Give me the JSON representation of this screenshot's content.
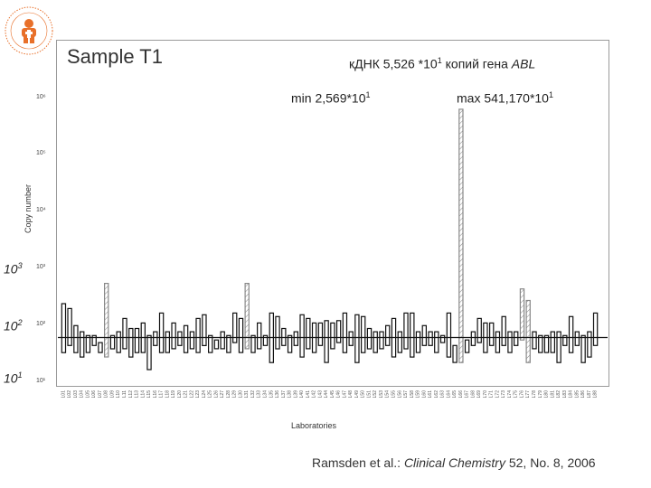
{
  "chart_data": {
    "type": "bar",
    "title": "Sample T1",
    "xlabel": "Laboratories",
    "ylabel": "Copy number",
    "y_scale": "log",
    "ylim": [
      10,
      1000000
    ],
    "y_ticks_small": [
      "10⁶",
      "10⁵",
      "10⁴",
      "10³",
      "10²",
      "10¹"
    ],
    "y_ticks_large": [
      {
        "base": "10",
        "exp": "3"
      },
      {
        "base": "10",
        "exp": "2"
      },
      {
        "base": "10",
        "exp": "1"
      }
    ],
    "reference_line": 55.26,
    "annotations": {
      "main_pre": "кДНК 5,526 *10",
      "main_exp": "1",
      "main_post": " копий гена ",
      "main_gene": "ABL",
      "min_pre": "min 2,569*10",
      "min_exp": "1",
      "max_pre": "max  541,170*10",
      "max_exp": "1"
    },
    "series": [
      {
        "values": [
          [
            30,
            220
          ],
          [
            40,
            180
          ],
          [
            30,
            90
          ],
          [
            25,
            70
          ],
          [
            30,
            60
          ],
          [
            40,
            60
          ],
          [
            30,
            45
          ],
          [
            25,
            500
          ],
          [
            35,
            60
          ],
          [
            30,
            70
          ],
          [
            35,
            120
          ],
          [
            25,
            80
          ],
          [
            30,
            80
          ],
          [
            30,
            100
          ],
          [
            15,
            60
          ],
          [
            40,
            70
          ],
          [
            30,
            150
          ],
          [
            30,
            70
          ],
          [
            35,
            100
          ],
          [
            40,
            70
          ],
          [
            30,
            90
          ],
          [
            35,
            70
          ],
          [
            30,
            120
          ],
          [
            40,
            140
          ],
          [
            30,
            60
          ],
          [
            35,
            50
          ],
          [
            35,
            70
          ],
          [
            30,
            60
          ],
          [
            45,
            150
          ],
          [
            30,
            120
          ],
          [
            35,
            500
          ],
          [
            30,
            60
          ],
          [
            35,
            100
          ],
          [
            40,
            60
          ],
          [
            20,
            150
          ],
          [
            35,
            130
          ],
          [
            40,
            80
          ],
          [
            30,
            60
          ],
          [
            40,
            70
          ],
          [
            25,
            140
          ],
          [
            35,
            120
          ],
          [
            30,
            100
          ],
          [
            40,
            100
          ],
          [
            20,
            110
          ],
          [
            35,
            100
          ],
          [
            45,
            110
          ],
          [
            30,
            150
          ],
          [
            40,
            70
          ],
          [
            20,
            140
          ],
          [
            30,
            130
          ],
          [
            35,
            80
          ],
          [
            30,
            70
          ],
          [
            35,
            70
          ],
          [
            40,
            90
          ],
          [
            25,
            120
          ],
          [
            30,
            70
          ],
          [
            35,
            150
          ],
          [
            25,
            150
          ],
          [
            30,
            70
          ],
          [
            40,
            90
          ],
          [
            40,
            70
          ],
          [
            30,
            70
          ],
          [
            45,
            60
          ],
          [
            25,
            150
          ],
          [
            20,
            40
          ],
          [
            20,
            600000
          ],
          [
            30,
            50
          ],
          [
            40,
            70
          ],
          [
            45,
            120
          ],
          [
            30,
            100
          ],
          [
            40,
            100
          ],
          [
            30,
            70
          ],
          [
            40,
            130
          ],
          [
            30,
            70
          ],
          [
            40,
            70
          ],
          [
            50,
            400
          ],
          [
            20,
            250
          ],
          [
            35,
            70
          ],
          [
            30,
            60
          ],
          [
            30,
            60
          ],
          [
            30,
            70
          ],
          [
            20,
            70
          ],
          [
            40,
            60
          ],
          [
            30,
            130
          ],
          [
            40,
            70
          ],
          [
            20,
            60
          ],
          [
            25,
            70
          ],
          [
            40,
            150
          ]
        ]
      }
    ],
    "hatched_bar_indices": [
      7,
      30,
      65,
      75,
      76
    ],
    "x_tick_labels": [
      "L01",
      "L02",
      "L03",
      "L04",
      "L05",
      "L06",
      "L07",
      "L08",
      "L09",
      "L10",
      "L11",
      "L12",
      "L13",
      "L14",
      "L15",
      "L16",
      "L17",
      "L18",
      "L19",
      "L20",
      "L21",
      "L22",
      "L23",
      "L24",
      "L25",
      "L26",
      "L27",
      "L28",
      "L29",
      "L30",
      "L31",
      "L32",
      "L33",
      "L34",
      "L35",
      "L36",
      "L37",
      "L38",
      "L39",
      "L40",
      "L41",
      "L42",
      "L43",
      "L44",
      "L45",
      "L46",
      "L47",
      "L48",
      "L49",
      "L50",
      "L51",
      "L52",
      "L53",
      "L54",
      "L55",
      "L56",
      "L57",
      "L58",
      "L59",
      "L60",
      "L61",
      "L62",
      "L63",
      "L64",
      "L65",
      "L66",
      "L67",
      "L68",
      "L69",
      "L70",
      "L71",
      "L72",
      "L73",
      "L74",
      "L75",
      "L76",
      "L77",
      "L78",
      "L79",
      "L80",
      "L81",
      "L82",
      "L83",
      "L84",
      "L85",
      "L86",
      "L87",
      "L88"
    ]
  },
  "citation": {
    "authors": "Ramsden et al.: ",
    "journal": "Clinical Chemistry",
    "rest": " 52, No. 8, 2006"
  },
  "colors": {
    "bar_fill": "#ffffff",
    "bar_stroke": "#111111",
    "hatch": "#888888",
    "reference_line": "#111111",
    "logo_orange": "#e8702a"
  }
}
